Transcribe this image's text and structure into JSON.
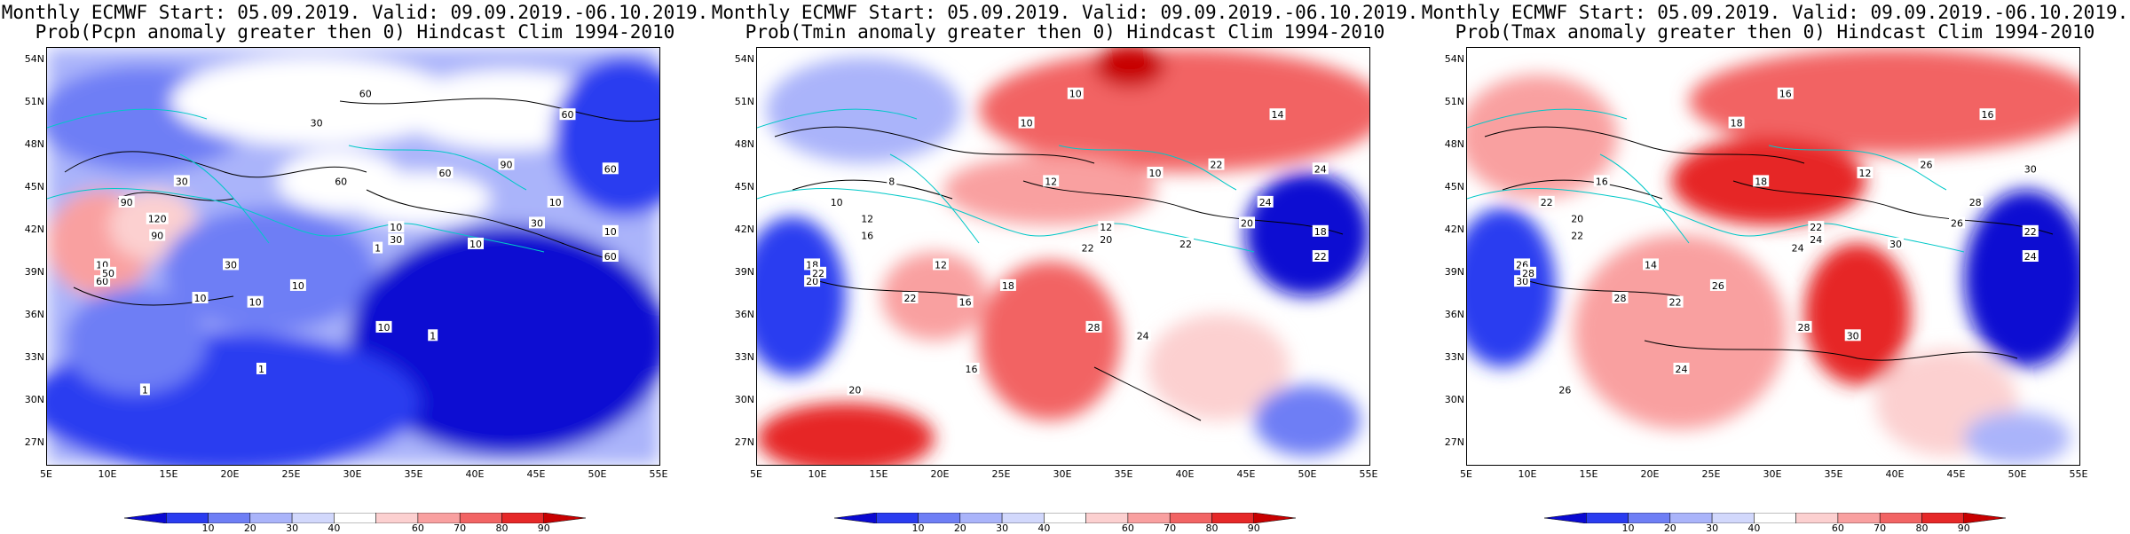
{
  "panels": [
    {
      "title_line1": "Monthly ECMWF Start: 05.09.2019. Valid: 09.09.2019.-06.10.2019.",
      "title_line2": "Prob(Pcpn anomaly greater then 0) Hindcast Clim 1994-2010",
      "contour_labels": [
        "60",
        "30",
        "30",
        "60",
        "90",
        "90",
        "120",
        "60",
        "30",
        "60",
        "10",
        "30",
        "10",
        "10",
        "10",
        "1",
        "1",
        "1",
        "10",
        "60",
        "50",
        "10",
        "1",
        "90",
        "60",
        "30",
        "60",
        "10",
        "10",
        "10"
      ]
    },
    {
      "title_line1": "Monthly ECMWF Start: 05.09.2019. Valid: 09.09.2019.-06.10.2019.",
      "title_line2": "Prob(Tmin anomaly greater then 0) Hindcast Clim 1994-2010",
      "contour_labels": [
        "10",
        "10",
        "8",
        "12",
        "10",
        "16",
        "12",
        "14",
        "12",
        "10",
        "12",
        "20",
        "18",
        "16",
        "22",
        "22",
        "16",
        "24",
        "18",
        "20",
        "22",
        "24",
        "20",
        "22",
        "24",
        "20",
        "22",
        "18",
        "28",
        "22"
      ]
    },
    {
      "title_line1": "Monthly ECMWF Start: 05.09.2019. Valid: 09.09.2019.-06.10.2019.",
      "title_line2": "Prob(Tmax anomaly greater then 0) Hindcast Clim 1994-2010",
      "contour_labels": [
        "16",
        "18",
        "16",
        "18",
        "22",
        "22",
        "20",
        "16",
        "14",
        "12",
        "22",
        "24",
        "26",
        "22",
        "28",
        "24",
        "24",
        "30",
        "26",
        "30",
        "28",
        "28",
        "26",
        "26",
        "30",
        "26",
        "24",
        "22",
        "28",
        "30"
      ]
    }
  ],
  "lat_ticks": [
    "54N",
    "51N",
    "48N",
    "45N",
    "42N",
    "39N",
    "36N",
    "33N",
    "30N",
    "27N"
  ],
  "lon_ticks": [
    "5E",
    "10E",
    "15E",
    "20E",
    "25E",
    "30E",
    "35E",
    "40E",
    "45E",
    "50E",
    "55E"
  ],
  "colorbar_labels": [
    "10",
    "20",
    "30",
    "40",
    "60",
    "70",
    "80",
    "90"
  ],
  "colorbar_colors": [
    "#0a0ad2",
    "#2a3cf0",
    "#6e7ef5",
    "#aab4fa",
    "#d2d8fc",
    "#ffffff",
    "#fcd0d0",
    "#f9a0a0",
    "#f26464",
    "#e62828",
    "#c80000"
  ]
}
